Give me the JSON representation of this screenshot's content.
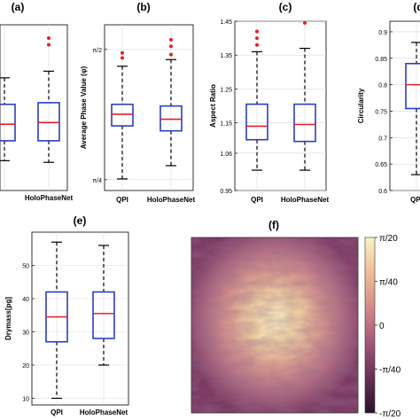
{
  "colors": {
    "box": "#2a3fbf",
    "median": "#e0202a",
    "outlier": "#e0202a",
    "whisker": "#000000",
    "grid": "#d9d9d9",
    "colormap": [
      "#2b1129",
      "#5e2a4e",
      "#8f4a70",
      "#bf6f83",
      "#dd9a8c",
      "#efc79c",
      "#fbf4c4"
    ]
  },
  "chart_data": [
    {
      "panel": "(a)",
      "type": "box",
      "partial": true,
      "categories": [
        "",
        "HoloPhaseNet"
      ],
      "xlabel": "",
      "ylabel": "",
      "ylim": [
        0,
        1
      ],
      "yticks": [],
      "boxes": [
        {
          "whisker_low": 0.18,
          "q1": 0.3,
          "median": 0.4,
          "q3": 0.52,
          "whisker_high": 0.68,
          "outliers": []
        },
        {
          "whisker_low": 0.17,
          "q1": 0.3,
          "median": 0.41,
          "q3": 0.53,
          "whisker_high": 0.72,
          "outliers": [
            0.88,
            0.92
          ]
        }
      ]
    },
    {
      "panel": "(b)",
      "type": "box",
      "categories": [
        "QPI",
        "HoloPhaseNet"
      ],
      "xlabel": "",
      "ylabel": "Average Phase Value (φ)",
      "ylim": [
        0.72,
        1.72
      ],
      "ytick_values": [
        0.785,
        1.571
      ],
      "ytick_labels": [
        "π/4",
        "π/2"
      ],
      "boxes": [
        {
          "whisker_low": 0.79,
          "q1": 1.11,
          "median": 1.18,
          "q3": 1.24,
          "whisker_high": 1.47,
          "outliers": [
            1.52,
            1.55
          ]
        },
        {
          "whisker_low": 0.87,
          "q1": 1.08,
          "median": 1.15,
          "q3": 1.23,
          "whisker_high": 1.51,
          "outliers": [
            1.54,
            1.59,
            1.63
          ]
        }
      ]
    },
    {
      "panel": "(c)",
      "type": "box",
      "categories": [
        "QPI",
        "HoloPhaseNet"
      ],
      "xlabel": "",
      "ylabel": "Aspect Ratio",
      "ylim": [
        0.95,
        1.45
      ],
      "ytick_values": [
        0.95,
        1.06,
        1.15,
        1.25,
        1.35,
        1.45
      ],
      "ytick_labels": [
        "0.95",
        "1.06",
        "1.15",
        "1.25",
        "1.35",
        "1.45"
      ],
      "boxes": [
        {
          "whisker_low": 1.01,
          "q1": 1.1,
          "median": 1.14,
          "q3": 1.205,
          "whisker_high": 1.36,
          "outliers": [
            1.38,
            1.4,
            1.42
          ]
        },
        {
          "whisker_low": 1.01,
          "q1": 1.095,
          "median": 1.145,
          "q3": 1.205,
          "whisker_high": 1.37,
          "outliers": [
            1.445
          ]
        }
      ]
    },
    {
      "panel": "(d)",
      "type": "box",
      "partial": true,
      "categories": [
        "QPI"
      ],
      "xlabel": "",
      "ylabel": "Circularity",
      "ylim": [
        0.6,
        0.92
      ],
      "ytick_values": [
        0.6,
        0.65,
        0.7,
        0.75,
        0.8,
        0.85,
        0.9
      ],
      "ytick_labels": [
        "0.6",
        "0.65",
        "0.7",
        "0.75",
        "0.8",
        "0.85",
        "0.9"
      ],
      "boxes": [
        {
          "whisker_low": 0.63,
          "q1": 0.755,
          "median": 0.8,
          "q3": 0.84,
          "whisker_high": 0.88,
          "outliers": []
        }
      ]
    },
    {
      "panel": "(e)",
      "type": "box",
      "categories": [
        "QPI",
        "HoloPhaseNet"
      ],
      "xlabel": "",
      "ylabel": "Drymass[pg]",
      "ylim": [
        8,
        60
      ],
      "ytick_values": [
        10,
        20,
        30,
        40,
        50
      ],
      "ytick_labels": [
        "10",
        "20",
        "30",
        "40",
        "50"
      ],
      "boxes": [
        {
          "whisker_low": 10,
          "q1": 27,
          "median": 34.5,
          "q3": 42,
          "whisker_high": 57,
          "outliers": []
        },
        {
          "whisker_low": 20,
          "q1": 28,
          "median": 35.5,
          "q3": 42,
          "whisker_high": 56,
          "outliers": []
        }
      ]
    },
    {
      "panel": "(f)",
      "type": "heatmap",
      "xlabel": "",
      "ylabel": "",
      "colorbar_ticks": [
        "π/20",
        "π/40",
        "0",
        "-π/40",
        "-π/20"
      ],
      "colorbar_range": [
        -0.157,
        0.157
      ]
    }
  ]
}
